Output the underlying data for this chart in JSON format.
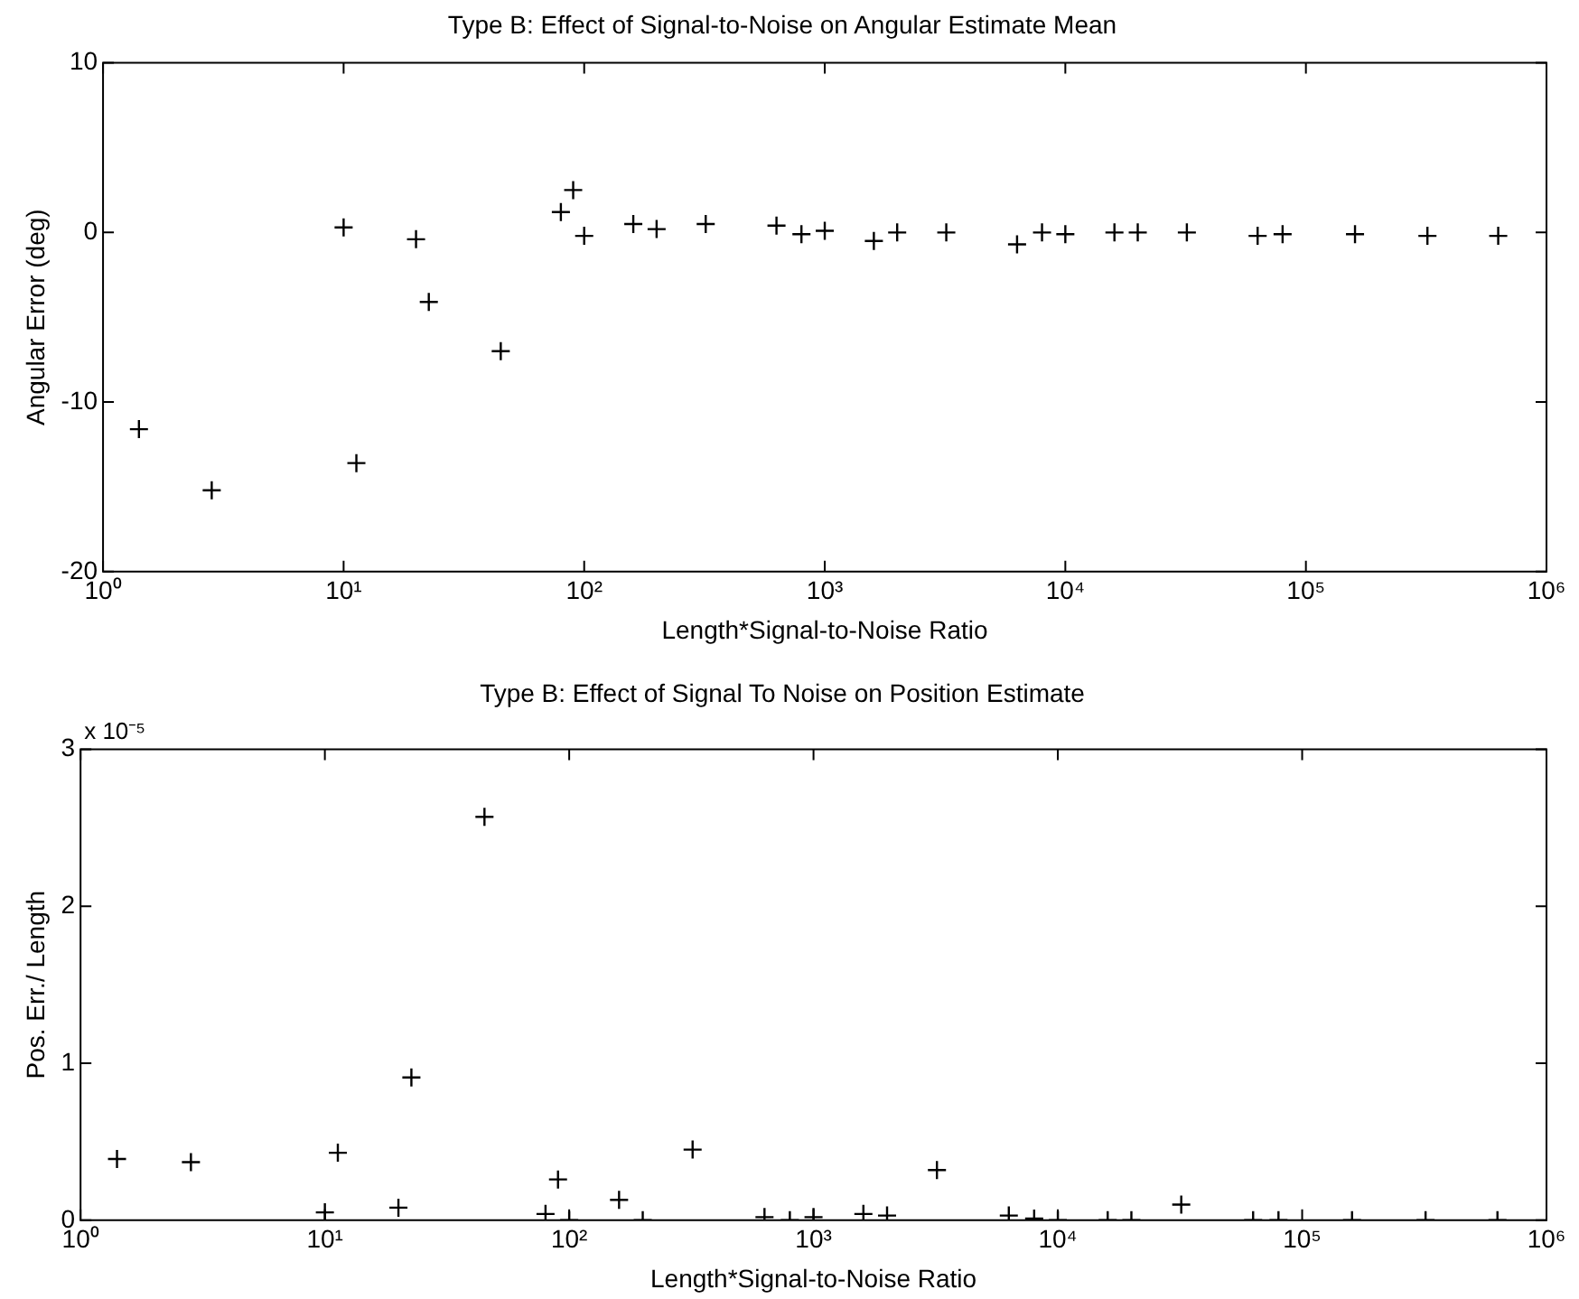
{
  "chart_data": [
    {
      "type": "scatter",
      "title": "Type B: Effect of Signal-to-Noise on Angular Estimate Mean",
      "xlabel": "Length*Signal-to-Noise Ratio",
      "ylabel": "Angular Error (deg)",
      "log": "x",
      "grid": false,
      "legend": false,
      "marker": "cross",
      "x": [
        1.41,
        2.83,
        10,
        11.3,
        20,
        22.6,
        45,
        80,
        90,
        100,
        160,
        200,
        320,
        630,
        800,
        1000,
        1600,
        2000,
        3200,
        6300,
        8000,
        10000,
        16000,
        20000,
        32000,
        63000,
        80000,
        160000,
        320000,
        630000
      ],
      "series": [
        {
          "color": "#000000",
          "values": [
            -11.6,
            -15.2,
            0.3,
            -13.6,
            -0.4,
            -4.1,
            -7.0,
            1.2,
            2.5,
            -0.2,
            0.5,
            0.2,
            0.5,
            0.4,
            -0.1,
            0.1,
            -0.5,
            0,
            0,
            -0.7,
            0,
            -0.1,
            0,
            0,
            0,
            -0.2,
            -0.1,
            -0.1,
            -0.2,
            -0.2
          ]
        }
      ],
      "xlim": [
        1,
        1000000
      ],
      "xticks": [
        {
          "value": 1,
          "label": "10⁰"
        },
        {
          "value": 10,
          "label": "10¹"
        },
        {
          "value": 100,
          "label": "10²"
        },
        {
          "value": 1000,
          "label": "10³"
        },
        {
          "value": 10000,
          "label": "10⁴"
        },
        {
          "value": 100000,
          "label": "10⁵"
        },
        {
          "value": 1000000,
          "label": "10⁶"
        }
      ],
      "ylim": [
        -20,
        10
      ],
      "yticks": [
        -20,
        -10,
        0,
        10
      ]
    },
    {
      "type": "scatter",
      "title": "Type B: Effect of Signal To Noise on Position Estimate",
      "xlabel": "Length*Signal-to-Noise Ratio",
      "ylabel": "Pos. Err./ Length",
      "log": "x",
      "grid": false,
      "legend": false,
      "marker": "cross",
      "annotations": [
        "x 10⁻⁵"
      ],
      "x": [
        1.41,
        2.83,
        10,
        11.3,
        20,
        22.6,
        45,
        80,
        90,
        100,
        160,
        200,
        320,
        630,
        800,
        1000,
        1600,
        2000,
        3200,
        6300,
        8000,
        10000,
        16000,
        20000,
        32000,
        63000,
        80000,
        160000,
        320000,
        630000
      ],
      "series": [
        {
          "color": "#000000",
          "values": [
            0.39,
            0.37,
            0.05,
            0.43,
            0.08,
            0.91,
            2.57,
            0.04,
            0.26,
            0,
            0.13,
            0,
            0.45,
            0.02,
            0,
            0.02,
            0.04,
            0.03,
            0.32,
            0.03,
            0.01,
            0,
            0,
            0,
            0.1,
            0,
            0,
            0,
            0,
            0
          ]
        }
      ],
      "xlim": [
        1,
        1000000
      ],
      "xticks": [
        {
          "value": 1,
          "label": "10⁰"
        },
        {
          "value": 10,
          "label": "10¹"
        },
        {
          "value": 100,
          "label": "10²"
        },
        {
          "value": 1000,
          "label": "10³"
        },
        {
          "value": 10000,
          "label": "10⁴"
        },
        {
          "value": 100000,
          "label": "10⁵"
        },
        {
          "value": 1000000,
          "label": "10⁶"
        }
      ],
      "ylim": [
        0,
        3
      ],
      "yticks": [
        0,
        1,
        2,
        3
      ]
    }
  ]
}
